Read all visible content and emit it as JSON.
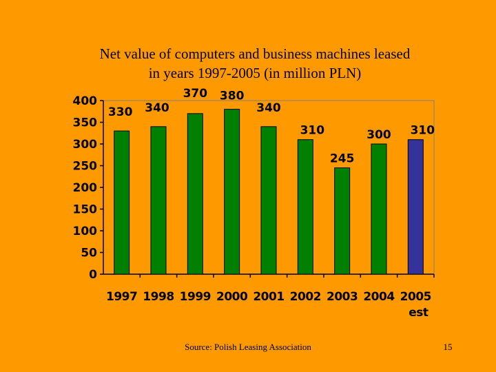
{
  "slide": {
    "title_line1": "Net value of computers and business machines leased",
    "title_line2": "in  years 1997-2005 (in million PLN)",
    "source": "Source: Polish Leasing Association",
    "page_number": "15"
  },
  "chart_data": {
    "type": "bar",
    "title": "Net value of computers and business machines leased in  years 1997-2005 (in million PLN)",
    "categories": [
      "1997",
      "1998",
      "1999",
      "2000",
      "2001",
      "2002",
      "2003",
      "2004",
      "2005"
    ],
    "category_sublabels": [
      "",
      "",
      "",
      "",
      "",
      "",
      "",
      "",
      "est"
    ],
    "values": [
      330,
      340,
      370,
      380,
      340,
      310,
      245,
      300,
      310
    ],
    "data_labels": [
      "330",
      "340",
      "370",
      "380",
      "340",
      "310",
      "245",
      "300",
      "310"
    ],
    "bar_colors": [
      "#008000",
      "#008000",
      "#008000",
      "#008000",
      "#008000",
      "#008000",
      "#008000",
      "#008000",
      "#333399"
    ],
    "ylim": [
      0,
      400
    ],
    "yticks": [
      0,
      50,
      100,
      150,
      200,
      250,
      300,
      350,
      400
    ],
    "grid": false,
    "plot_background": "#FF9900",
    "xlabel": "",
    "ylabel": ""
  }
}
